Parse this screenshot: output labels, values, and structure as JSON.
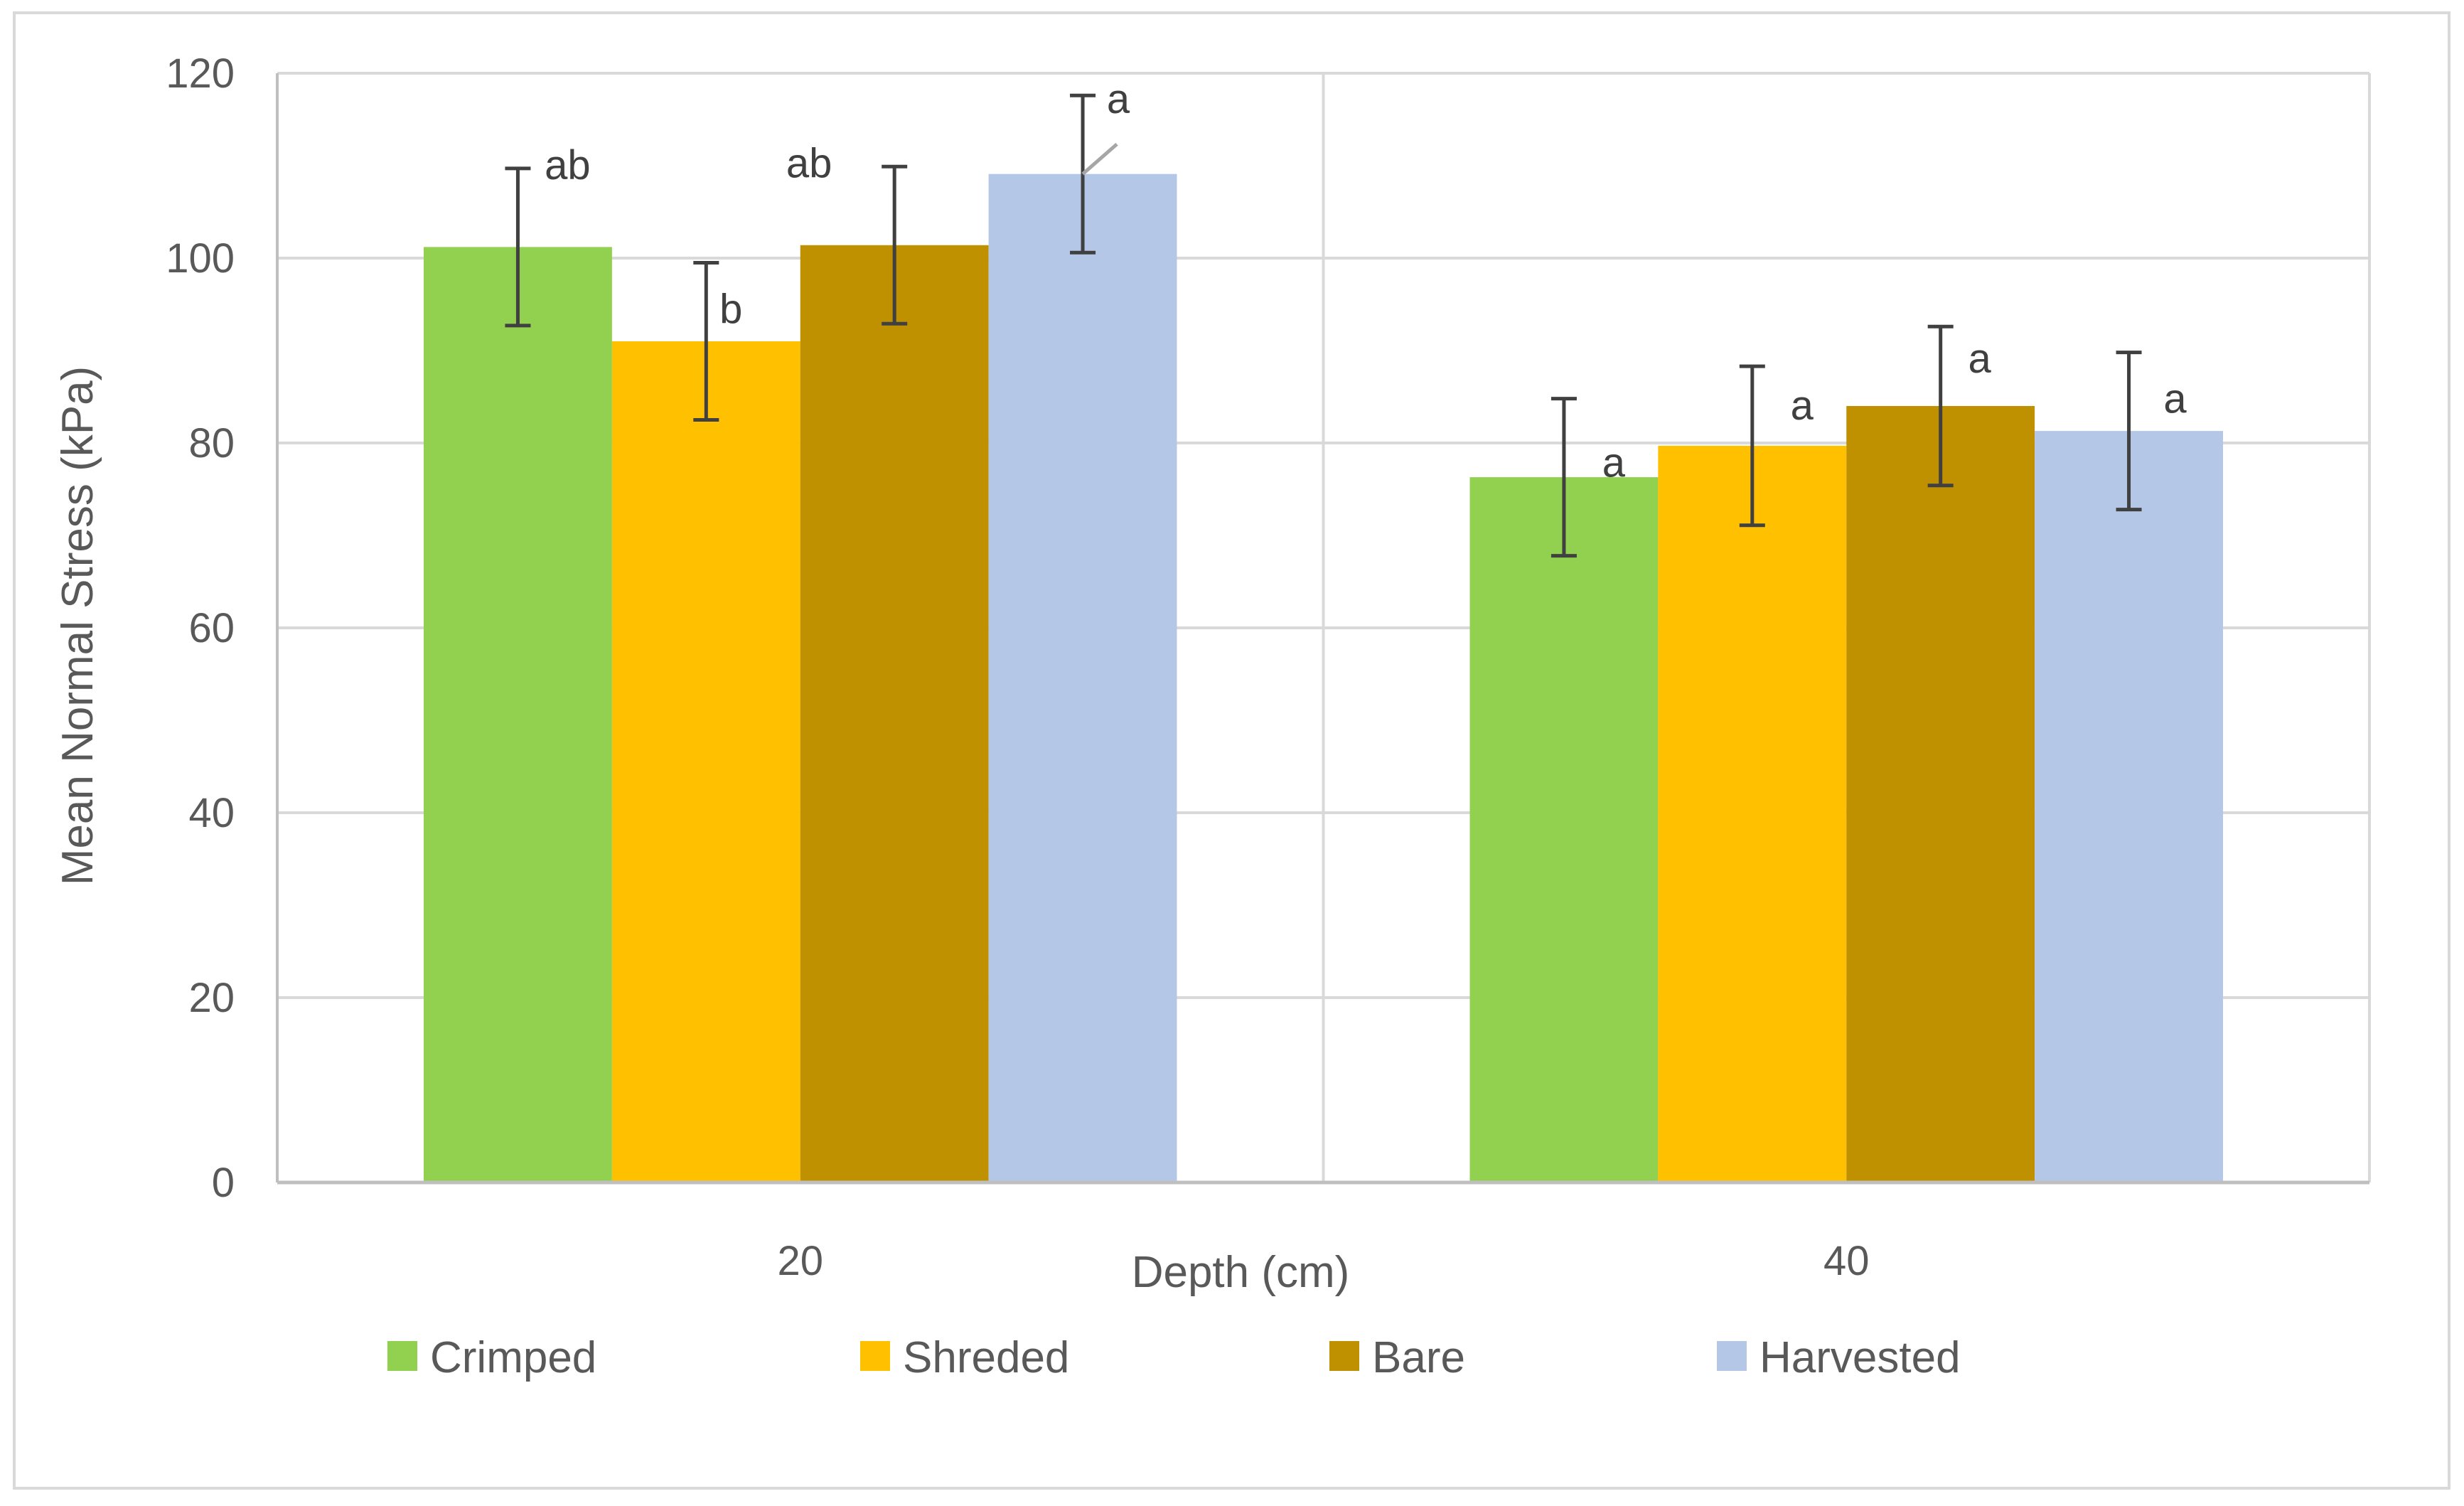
{
  "chart_data": {
    "type": "bar",
    "title": "",
    "xlabel": "Depth (cm)",
    "ylabel": "Mean Normal Stress (kPa)",
    "ylim": [
      0,
      120
    ],
    "yticks": [
      0,
      20,
      40,
      60,
      80,
      100,
      120
    ],
    "categories": [
      "20",
      "40"
    ],
    "grid": true,
    "legend_position": "bottom",
    "series": [
      {
        "name": "Crimped",
        "color": "#92D050",
        "values": [
          101.2,
          76.3
        ],
        "errors": [
          8.5,
          8.5
        ],
        "letters": [
          "ab",
          "a"
        ]
      },
      {
        "name": "Shreded",
        "color": "#FFC000",
        "values": [
          91.0,
          79.7
        ],
        "errors": [
          8.5,
          8.6
        ],
        "letters": [
          "b",
          "a"
        ]
      },
      {
        "name": "Bare",
        "color": "#BF9000",
        "values": [
          101.4,
          84.0
        ],
        "errors": [
          8.5,
          8.6
        ],
        "letters": [
          "ab",
          "a"
        ]
      },
      {
        "name": "Harvested",
        "color": "#B4C7E7",
        "values": [
          109.1,
          81.3
        ],
        "errors": [
          8.5,
          8.5
        ],
        "letters": [
          "a",
          "a"
        ]
      }
    ]
  },
  "colors": {
    "grid": "#D9D9D9",
    "axis": "#BFBFBF",
    "error_bar": "#404040",
    "text": "#404040"
  }
}
